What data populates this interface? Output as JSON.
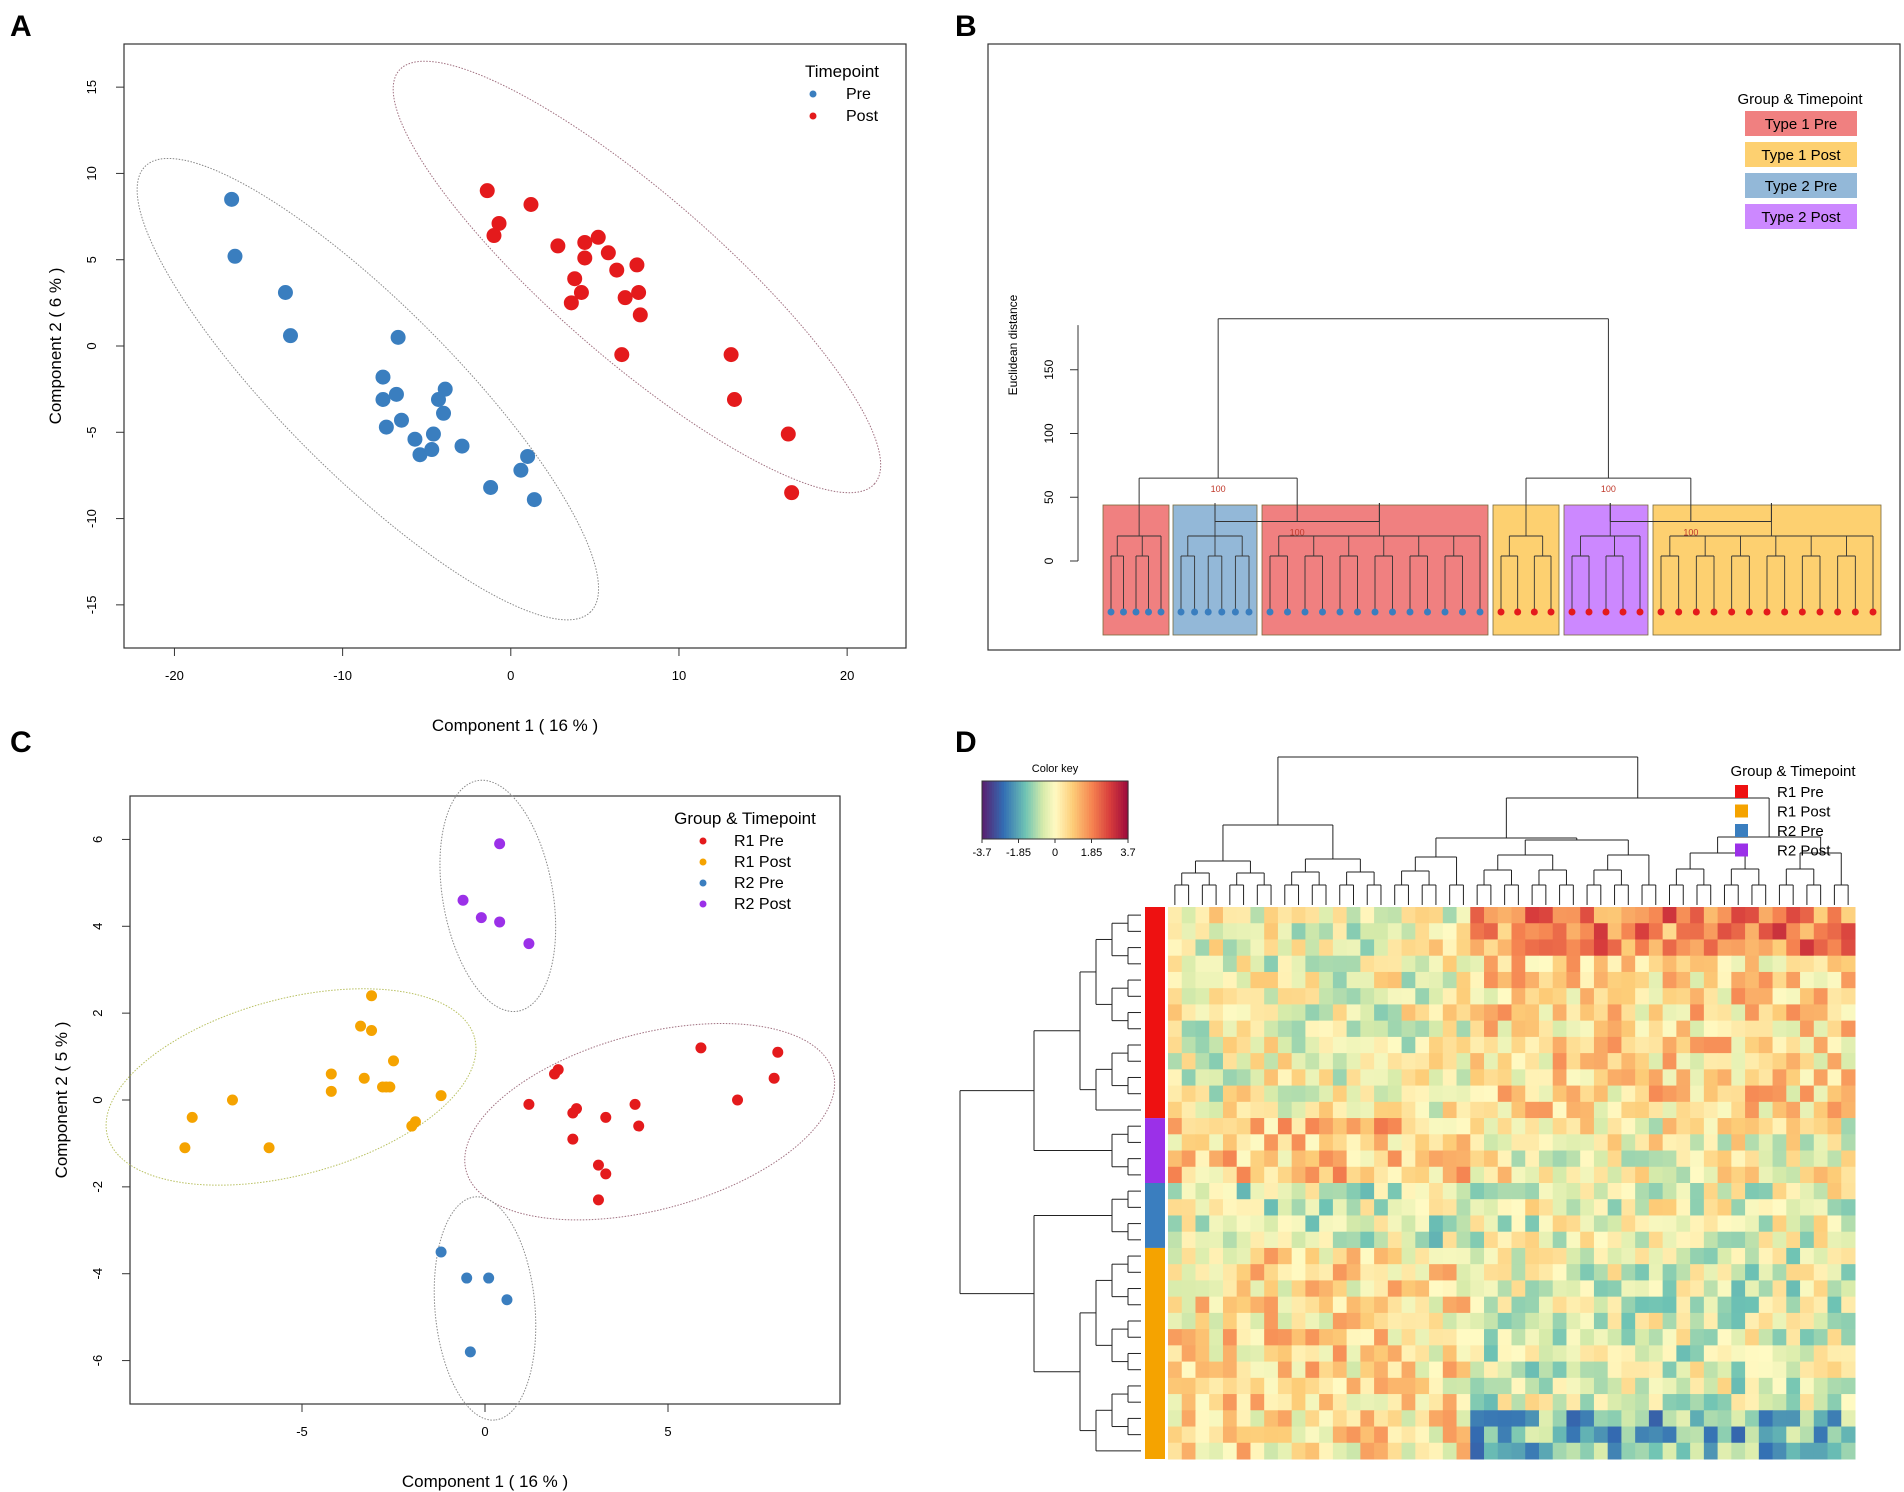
{
  "panels": {
    "a": "A",
    "b": "B",
    "c": "C",
    "d": "D"
  },
  "chart_data": [
    {
      "id": "A",
      "type": "scatter",
      "xlabel": "Component 1  ( 16 % )",
      "ylabel": "Component 2  ( 6 % )",
      "xlim": [
        -23,
        23.5
      ],
      "ylim": [
        -17.5,
        17.5
      ],
      "xticks": [
        -20,
        -10,
        0,
        10,
        20
      ],
      "yticks": [
        -15,
        -10,
        -5,
        0,
        5,
        10,
        15
      ],
      "legend_title": "Timepoint",
      "series": [
        {
          "name": "Pre",
          "color": "#3a7ebf",
          "points": [
            [
              -16.6,
              8.5
            ],
            [
              -16.4,
              5.2
            ],
            [
              -13.4,
              3.1
            ],
            [
              -13.1,
              0.6
            ],
            [
              -6.7,
              0.5
            ],
            [
              -7.6,
              -1.8
            ],
            [
              -7.6,
              -3.1
            ],
            [
              -6.8,
              -2.8
            ],
            [
              -7.4,
              -4.7
            ],
            [
              -6.5,
              -4.3
            ],
            [
              -5.7,
              -5.4
            ],
            [
              -5.4,
              -6.3
            ],
            [
              -4.7,
              -6.0
            ],
            [
              -4.6,
              -5.1
            ],
            [
              -4.3,
              -3.1
            ],
            [
              -3.9,
              -2.5
            ],
            [
              -4.0,
              -3.9
            ],
            [
              -2.9,
              -5.8
            ],
            [
              -1.2,
              -8.2
            ],
            [
              0.6,
              -7.2
            ],
            [
              1.0,
              -6.4
            ],
            [
              1.4,
              -8.9
            ]
          ]
        },
        {
          "name": "Post",
          "color": "#e41a1c",
          "points": [
            [
              -1.4,
              9.0
            ],
            [
              1.2,
              8.2
            ],
            [
              -0.7,
              7.1
            ],
            [
              -1.0,
              6.4
            ],
            [
              2.8,
              5.8
            ],
            [
              4.4,
              6.0
            ],
            [
              5.2,
              6.3
            ],
            [
              4.4,
              5.1
            ],
            [
              5.8,
              5.4
            ],
            [
              6.3,
              4.4
            ],
            [
              7.5,
              4.7
            ],
            [
              3.8,
              3.9
            ],
            [
              4.2,
              3.1
            ],
            [
              3.6,
              2.5
            ],
            [
              6.8,
              2.8
            ],
            [
              7.6,
              3.1
            ],
            [
              7.7,
              1.8
            ],
            [
              6.6,
              -0.5
            ],
            [
              13.1,
              -0.5
            ],
            [
              13.3,
              -3.1
            ],
            [
              16.5,
              -5.1
            ],
            [
              16.7,
              -8.5
            ]
          ]
        }
      ]
    },
    {
      "id": "B",
      "type": "dendrogram",
      "ylabel": "Euclidean distance",
      "ylim": [
        0,
        190
      ],
      "yticks": [
        0,
        50,
        100,
        150
      ],
      "bootstrap_labels": [
        "100",
        "100",
        "100",
        "100"
      ],
      "legend_title": "Group & Timepoint",
      "groups": [
        {
          "name": "Type 1 Pre",
          "color": "#f08080",
          "leaves": 5,
          "leaf_color": "#3a7ebf"
        },
        {
          "name": "Type 2 Pre",
          "color": "#93b8d8",
          "leaves": 6,
          "leaf_color": "#3a7ebf"
        },
        {
          "name": "Type 1 Pre",
          "color": "#f08080",
          "leaves": 13,
          "leaf_color": "#3a7ebf"
        },
        {
          "name": "Type 1 Post",
          "color": "#fdd070",
          "leaves": 4,
          "leaf_color": "#e41a1c"
        },
        {
          "name": "Type 2 Post",
          "color": "#cc88ff",
          "leaves": 5,
          "leaf_color": "#e41a1c"
        },
        {
          "name": "Type 1 Post",
          "color": "#fdd070",
          "leaves": 13,
          "leaf_color": "#e41a1c"
        }
      ],
      "legend": [
        {
          "name": "Type 1 Pre",
          "color": "#f08080"
        },
        {
          "name": "Type 1 Post",
          "color": "#fdd070"
        },
        {
          "name": "Type 2 Pre",
          "color": "#93b8d8"
        },
        {
          "name": "Type 2 Post",
          "color": "#cc88ff"
        }
      ]
    },
    {
      "id": "C",
      "type": "scatter",
      "xlabel": "Component 1  ( 16 % )",
      "ylabel": "Component 2  ( 5 % )",
      "xlim": [
        -9.7,
        9.7
      ],
      "ylim": [
        -7.0,
        7.0
      ],
      "xticks": [
        -5,
        0,
        5
      ],
      "yticks": [
        -6,
        -4,
        -2,
        0,
        2,
        4,
        6
      ],
      "legend_title": "Group & Timepoint",
      "series": [
        {
          "name": "R1 Pre",
          "color": "#e41a1c",
          "points": [
            [
              1.2,
              -0.1
            ],
            [
              1.9,
              0.6
            ],
            [
              2.0,
              0.7
            ],
            [
              2.4,
              -0.3
            ],
            [
              2.5,
              -0.2
            ],
            [
              3.3,
              -0.4
            ],
            [
              4.1,
              -0.1
            ],
            [
              4.2,
              -0.6
            ],
            [
              2.4,
              -0.9
            ],
            [
              3.1,
              -1.5
            ],
            [
              3.3,
              -1.7
            ],
            [
              3.1,
              -2.3
            ],
            [
              5.9,
              1.2
            ],
            [
              6.9,
              0.0
            ],
            [
              7.9,
              0.5
            ],
            [
              8.0,
              1.1
            ]
          ]
        },
        {
          "name": "R1 Post",
          "color": "#f5a300",
          "points": [
            [
              -3.1,
              2.4
            ],
            [
              -3.4,
              1.7
            ],
            [
              -3.1,
              1.6
            ],
            [
              -2.5,
              0.9
            ],
            [
              -4.2,
              0.6
            ],
            [
              -3.3,
              0.5
            ],
            [
              -2.8,
              0.3
            ],
            [
              -2.6,
              0.3
            ],
            [
              -2.7,
              0.3
            ],
            [
              -4.2,
              0.2
            ],
            [
              -1.9,
              -0.5
            ],
            [
              -2.0,
              -0.6
            ],
            [
              -1.2,
              0.1
            ],
            [
              -6.9,
              0.0
            ],
            [
              -8.0,
              -0.4
            ],
            [
              -8.2,
              -1.1
            ],
            [
              -5.9,
              -1.1
            ]
          ]
        },
        {
          "name": "R2 Pre",
          "color": "#3a7ebf",
          "points": [
            [
              -1.2,
              -3.5
            ],
            [
              -0.5,
              -4.1
            ],
            [
              0.1,
              -4.1
            ],
            [
              0.6,
              -4.6
            ],
            [
              -0.4,
              -5.8
            ]
          ]
        },
        {
          "name": "R2 Post",
          "color": "#9b30e8",
          "points": [
            [
              0.4,
              5.9
            ],
            [
              -0.6,
              4.6
            ],
            [
              -0.1,
              4.2
            ],
            [
              0.4,
              4.1
            ],
            [
              1.2,
              3.6
            ]
          ]
        }
      ]
    },
    {
      "id": "D",
      "type": "heatmap",
      "rows": 34,
      "cols": 50,
      "color_key_title": "Color key",
      "color_key_ticks": [
        "-3.7",
        "-1.85",
        "0",
        "1.85",
        "3.7"
      ],
      "color_range": [
        -3.7,
        3.7
      ],
      "row_groups": [
        {
          "name": "R1 Pre",
          "color": "#ee1111",
          "rows": 13
        },
        {
          "name": "R2 Post",
          "color": "#9b30e8",
          "rows": 4
        },
        {
          "name": "R2 Pre",
          "color": "#3a7ebf",
          "rows": 4
        },
        {
          "name": "R1 Post",
          "color": "#f5a300",
          "rows": 13
        }
      ],
      "legend_title": "Group & Timepoint",
      "legend": [
        {
          "name": "R1 Pre",
          "color": "#ee1111"
        },
        {
          "name": "R1 Post",
          "color": "#f5a300"
        },
        {
          "name": "R2 Pre",
          "color": "#3a7ebf"
        },
        {
          "name": "R2 Post",
          "color": "#9b30e8"
        }
      ]
    }
  ]
}
